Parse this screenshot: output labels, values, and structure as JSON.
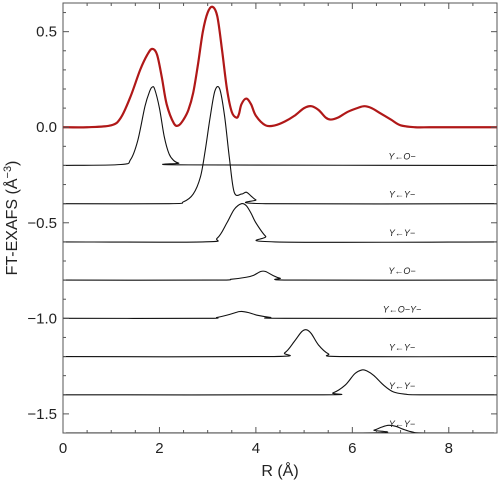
{
  "chart_data": {
    "type": "line",
    "title": "",
    "xlabel": "R (Å)",
    "ylabel": "FT-EXAFS (Å",
    "ylabel_exponent": "−3",
    "ylabel_close": ")",
    "xlim": [
      0,
      9
    ],
    "ylim": [
      -1.6,
      0.65
    ],
    "x_ticks": [
      0,
      2,
      4,
      6,
      8
    ],
    "x_tick_labels": [
      "0",
      "2",
      "4",
      "6",
      "8"
    ],
    "y_ticks": [
      0.5,
      0.0,
      -0.5,
      -1.0,
      -1.5
    ],
    "y_tick_labels": [
      "0.5",
      "0.0",
      "−0.5",
      "−1.0",
      "−1.5"
    ],
    "grid": false,
    "total": {
      "color": "#b01818",
      "x": [
        0.0,
        0.5,
        1.0,
        1.2,
        1.4,
        1.6,
        1.75,
        1.85,
        1.95,
        2.05,
        2.15,
        2.3,
        2.4,
        2.5,
        2.6,
        2.7,
        2.8,
        2.9,
        3.0,
        3.1,
        3.2,
        3.3,
        3.4,
        3.5,
        3.6,
        3.65,
        3.7,
        3.8,
        3.9,
        4.0,
        4.2,
        4.4,
        4.6,
        4.8,
        5.0,
        5.15,
        5.3,
        5.45,
        5.55,
        5.7,
        5.9,
        6.1,
        6.25,
        6.4,
        6.6,
        6.8,
        7.0,
        7.3,
        7.6,
        8.0,
        9.0
      ],
      "y": [
        0.0,
        0.0,
        0.01,
        0.05,
        0.16,
        0.3,
        0.38,
        0.41,
        0.38,
        0.26,
        0.12,
        0.02,
        0.01,
        0.04,
        0.09,
        0.18,
        0.33,
        0.5,
        0.6,
        0.63,
        0.58,
        0.4,
        0.2,
        0.08,
        0.05,
        0.07,
        0.12,
        0.15,
        0.12,
        0.06,
        0.01,
        0.01,
        0.03,
        0.06,
        0.1,
        0.11,
        0.09,
        0.05,
        0.04,
        0.05,
        0.08,
        0.1,
        0.11,
        0.1,
        0.07,
        0.04,
        0.01,
        0.0,
        0.0,
        0.0,
        0.0
      ]
    },
    "paths": [
      {
        "label": "Y←O−",
        "offset": -0.2,
        "x": [
          0,
          1.2,
          1.4,
          1.55,
          1.7,
          1.8,
          1.85,
          1.9,
          2.0,
          2.1,
          2.2,
          2.3,
          2.4,
          2.6,
          9
        ],
        "y": [
          0,
          0.005,
          0.03,
          0.13,
          0.31,
          0.39,
          0.41,
          0.4,
          0.3,
          0.15,
          0.06,
          0.025,
          0.012,
          0.003,
          0
        ]
      },
      {
        "label": "Y←Y−",
        "offset": -0.4,
        "x": [
          0,
          2.2,
          2.5,
          2.7,
          2.85,
          2.95,
          3.05,
          3.15,
          3.25,
          3.35,
          3.45,
          3.55,
          3.7,
          3.8,
          3.9,
          4.0,
          4.2,
          9
        ],
        "y": [
          0,
          0,
          0.01,
          0.05,
          0.14,
          0.28,
          0.45,
          0.59,
          0.6,
          0.46,
          0.24,
          0.06,
          0.05,
          0.06,
          0.04,
          0.02,
          0.0,
          0
        ]
      },
      {
        "label": "Y←Y−",
        "offset": -0.6,
        "x": [
          0,
          2.9,
          3.2,
          3.4,
          3.55,
          3.7,
          3.8,
          3.9,
          4.0,
          4.2,
          4.4,
          9
        ],
        "y": [
          0,
          0,
          0.02,
          0.1,
          0.17,
          0.2,
          0.19,
          0.15,
          0.1,
          0.03,
          0.0,
          0
        ]
      },
      {
        "label": "Y←O−",
        "offset": -0.8,
        "x": [
          0,
          3.1,
          3.5,
          3.8,
          3.95,
          4.1,
          4.2,
          4.35,
          4.5,
          4.8,
          9
        ],
        "y": [
          0,
          0,
          0.005,
          0.015,
          0.025,
          0.045,
          0.045,
          0.025,
          0.01,
          0.0,
          0
        ]
      },
      {
        "label": "Y←O−Y−",
        "offset": -1.0,
        "x": [
          0,
          2.9,
          3.2,
          3.45,
          3.65,
          3.75,
          3.85,
          4.05,
          4.3,
          4.6,
          9
        ],
        "y": [
          0,
          0,
          0.005,
          0.02,
          0.035,
          0.035,
          0.03,
          0.015,
          0.005,
          0.0,
          0
        ]
      },
      {
        "label": "Y←Y−",
        "offset": -1.2,
        "x": [
          0,
          4.3,
          4.6,
          4.8,
          4.95,
          5.05,
          5.15,
          5.3,
          5.5,
          5.8,
          9
        ],
        "y": [
          0,
          0,
          0.02,
          0.08,
          0.13,
          0.14,
          0.12,
          0.06,
          0.015,
          0.0,
          0
        ]
      },
      {
        "label": "Y←Y−",
        "offset": -1.4,
        "x": [
          0,
          5.3,
          5.6,
          5.85,
          6.05,
          6.2,
          6.3,
          6.45,
          6.65,
          6.85,
          7.1,
          7.4,
          9
        ],
        "y": [
          0,
          0,
          0.01,
          0.05,
          0.11,
          0.13,
          0.125,
          0.1,
          0.05,
          0.015,
          0.003,
          0.0,
          0
        ]
      },
      {
        "label": "Y←Y−",
        "offset": -1.6,
        "x": [
          0,
          6.2,
          6.45,
          6.6,
          6.75,
          6.9,
          7.05,
          7.25,
          7.5,
          9
        ],
        "y": [
          0,
          0,
          0.015,
          0.03,
          0.04,
          0.035,
          0.02,
          0.005,
          0.0,
          0
        ]
      }
    ]
  }
}
